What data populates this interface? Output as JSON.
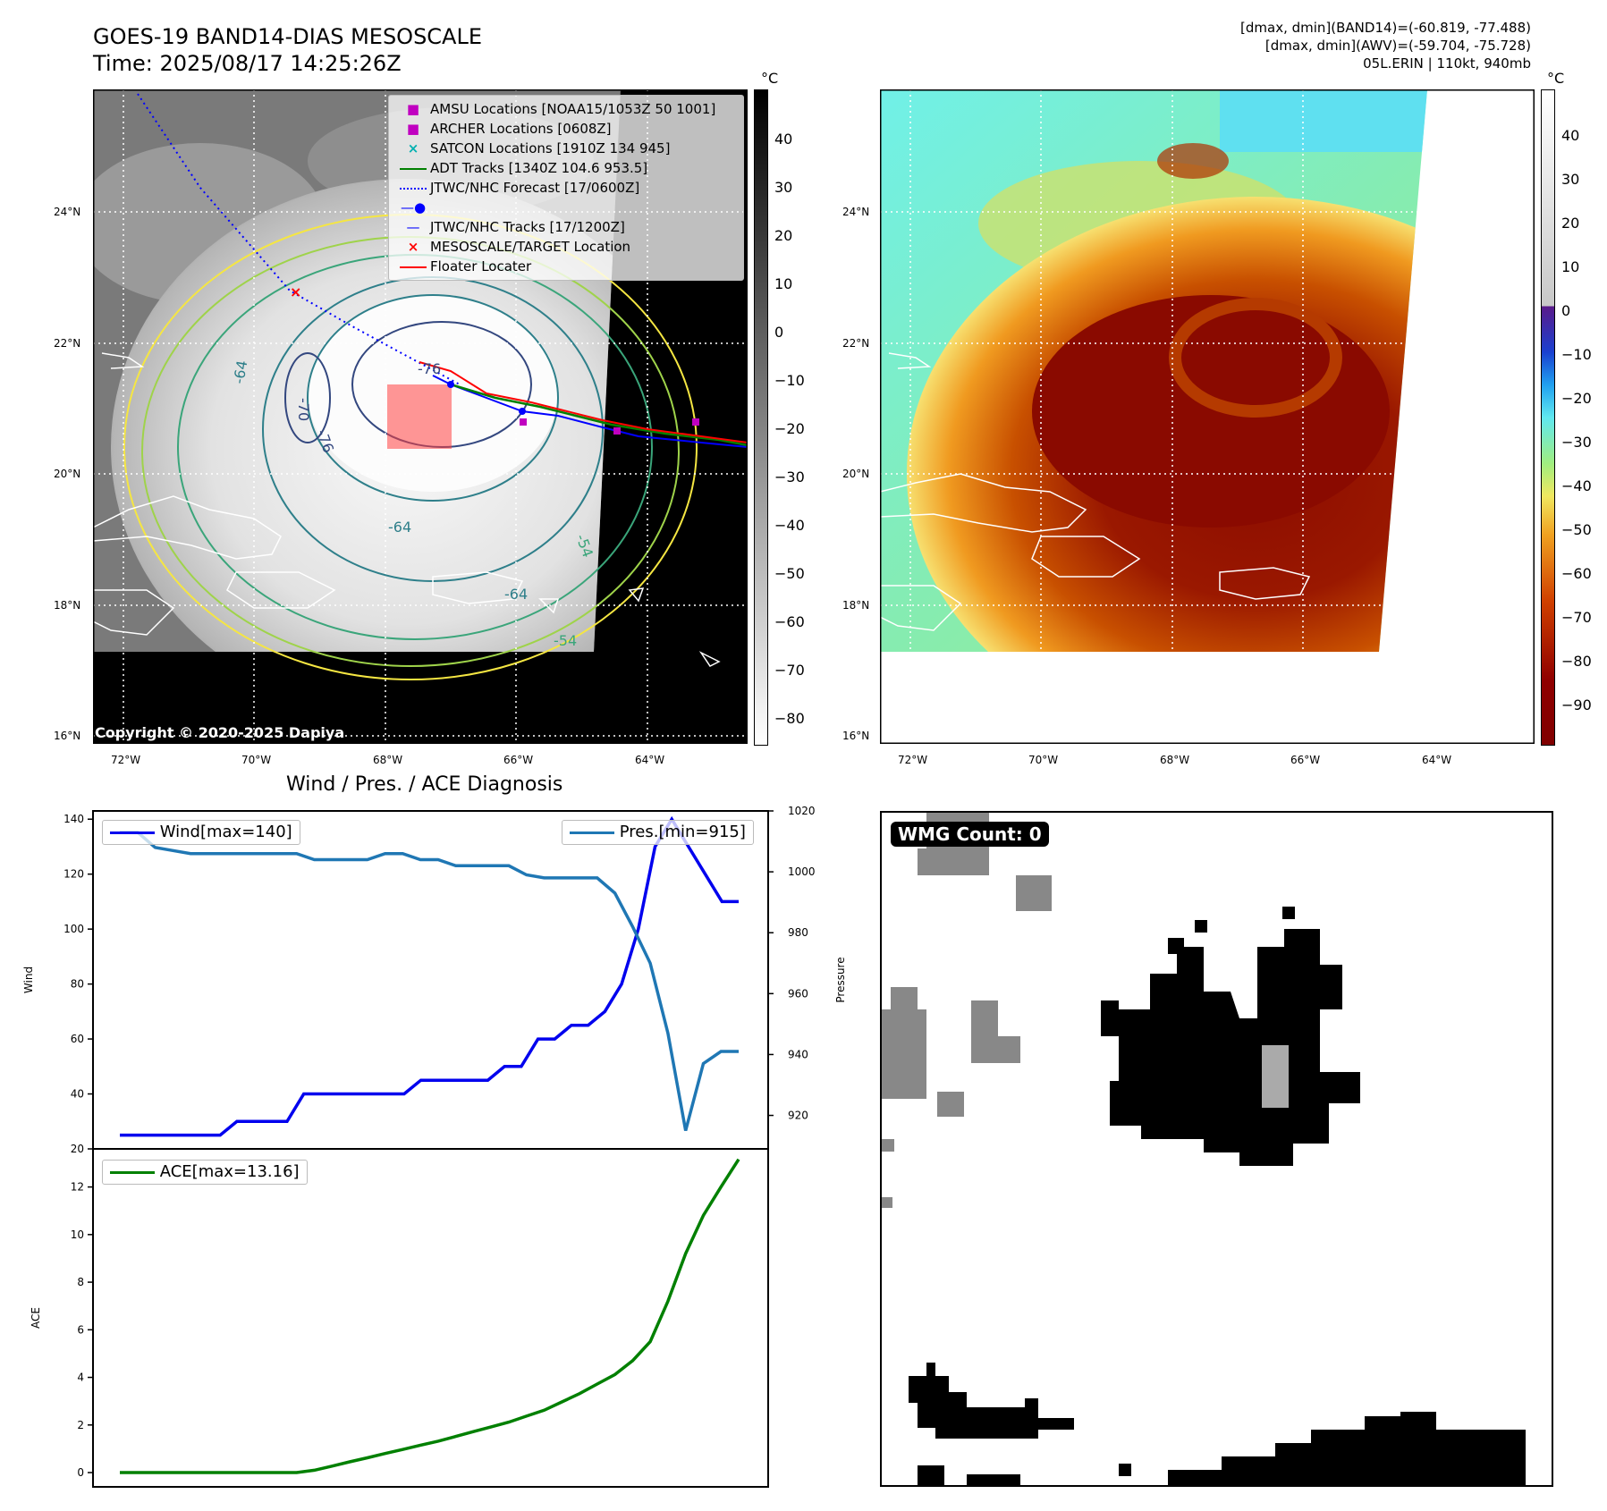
{
  "header": {
    "title_line1": "GOES-19 BAND14-DIAS MESOSCALE",
    "title_line2": "Time: 2025/08/17 14:25:26Z",
    "right_line1": "[dmax, dmin](BAND14)=(-60.819, -77.488)",
    "right_line2": "[dmax, dmin](AWV)=(-59.704, -75.728)",
    "right_line3": "05L.ERIN | 110kt, 940mb"
  },
  "map": {
    "lat_labels": [
      "24°N",
      "22°N",
      "20°N",
      "18°N",
      "16°N"
    ],
    "lon_labels": [
      "72°W",
      "70°W",
      "68°W",
      "66°W",
      "64°W"
    ],
    "contour_labels": [
      "-76",
      "-70",
      "-64",
      "-64",
      "-54",
      "-54",
      "-64",
      "-76"
    ],
    "copyright": "Copyright © 2020-2025 Dapiya",
    "legend": [
      {
        "label": "AMSU Locations [NOAA15/1053Z 50 1001]",
        "color": "#c000c0"
      },
      {
        "label": "ARCHER Locations [0608Z]",
        "color": "#c000c0"
      },
      {
        "label": "SATCON Locations [1910Z 134 945]",
        "color": "#00b0b0"
      },
      {
        "label": "ADT Tracks [1340Z 104.6 953.5]",
        "color": "#008000"
      },
      {
        "label": "JTWC/NHC Forecast [17/0600Z]",
        "color": "#0000ff"
      },
      {
        "label": "JTWC/NHC Tracks [17/1200Z]",
        "color": "#0000ff"
      },
      {
        "label": "MESOSCALE/TARGET Location",
        "color": "#ff0000"
      },
      {
        "label": "Floater Locater",
        "color": "#ff0000"
      }
    ]
  },
  "colorbar1": {
    "unit": "°C",
    "ticks": [
      "40",
      "30",
      "20",
      "10",
      "0",
      "−10",
      "−20",
      "−30",
      "−40",
      "−50",
      "−60",
      "−70",
      "−80"
    ]
  },
  "colorbar2": {
    "unit": "°C",
    "ticks": [
      "40",
      "30",
      "20",
      "10",
      "0",
      "−10",
      "−20",
      "−30",
      "−40",
      "−50",
      "−60",
      "−70",
      "−80",
      "−90"
    ]
  },
  "chart_data": [
    {
      "type": "line",
      "title": "Wind / Pres. / ACE Diagnosis",
      "ylabel": "Wind",
      "y2label": "Pressure",
      "ylim": [
        20,
        143
      ],
      "y2lim": [
        909,
        1020
      ],
      "yticks": [
        "140",
        "120",
        "100",
        "80",
        "60",
        "40",
        "20"
      ],
      "y2ticks": [
        "1020",
        "1000",
        "980",
        "960",
        "940",
        "920"
      ],
      "series": [
        {
          "name": "Wind[max=140]",
          "color": "#0000ee",
          "values": [
            25,
            25,
            25,
            25,
            25,
            25,
            25,
            30,
            30,
            30,
            30,
            40,
            40,
            40,
            40,
            40,
            40,
            40,
            45,
            45,
            45,
            45,
            45,
            50,
            50,
            60,
            60,
            65,
            65,
            70,
            80,
            100,
            130,
            140,
            130,
            120,
            110,
            110
          ]
        },
        {
          "name": "Pres.[min=915]",
          "color": "#1f77b4",
          "values": [
            1013,
            1013,
            1008,
            1007,
            1006,
            1006,
            1006,
            1006,
            1006,
            1006,
            1006,
            1004,
            1004,
            1004,
            1004,
            1006,
            1006,
            1004,
            1004,
            1002,
            1002,
            1002,
            1002,
            999,
            998,
            998,
            998,
            998,
            993,
            982,
            970,
            947,
            915,
            937,
            941,
            941
          ]
        }
      ]
    },
    {
      "type": "line",
      "ylabel": "ACE",
      "ylim": [
        -0.6,
        13.6
      ],
      "yticks": [
        "12",
        "10",
        "8",
        "6",
        "4",
        "2",
        "0"
      ],
      "series": [
        {
          "name": "ACE[max=13.16]",
          "color": "#008000",
          "values": [
            0,
            0,
            0,
            0,
            0,
            0,
            0,
            0,
            0,
            0,
            0,
            0.1,
            0.27,
            0.45,
            0.62,
            0.8,
            0.97,
            1.15,
            1.32,
            1.52,
            1.72,
            1.92,
            2.12,
            2.37,
            2.62,
            2.97,
            3.32,
            3.72,
            4.12,
            4.7,
            5.5,
            7.2,
            9.2,
            10.8,
            12.0,
            13.16
          ]
        }
      ]
    }
  ],
  "wmg": {
    "label": "WMG Count: 0"
  }
}
